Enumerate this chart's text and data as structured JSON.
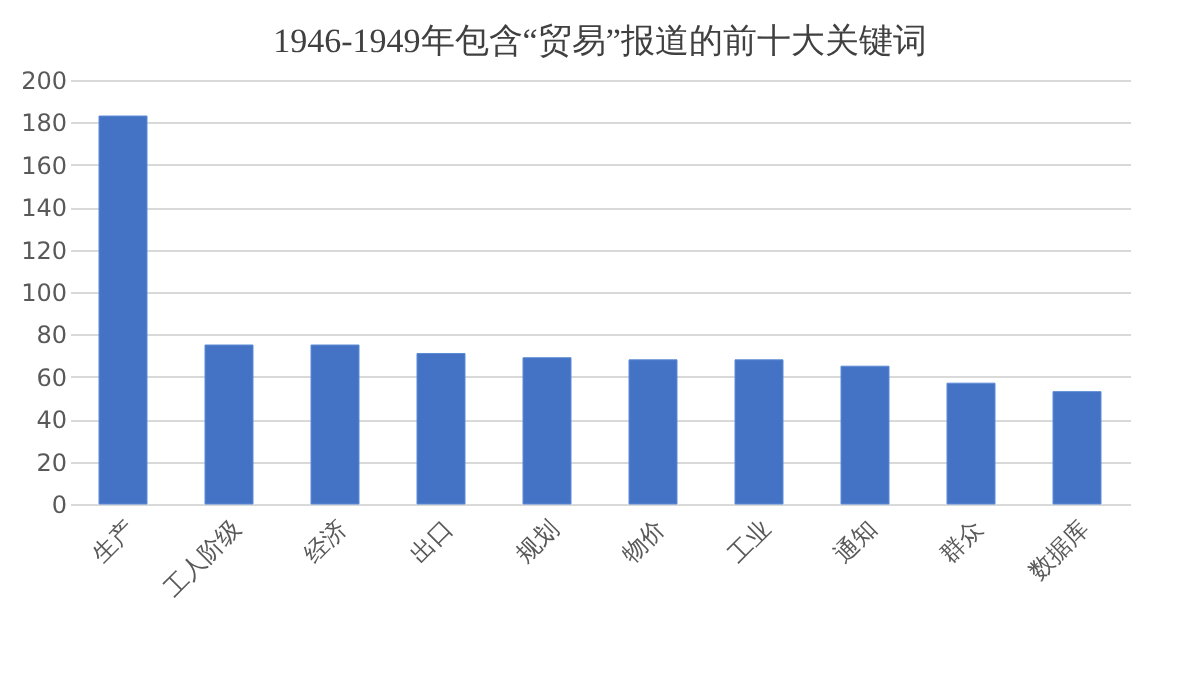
{
  "chart_data": {
    "type": "bar",
    "title": "1946-1949年包含“贸易”报道的前十大关键词",
    "categories": [
      "生产",
      "工人阶级",
      "经济",
      "出口",
      "规划",
      "物价",
      "工业",
      "通知",
      "群众",
      "数据库"
    ],
    "values": [
      183,
      75,
      75,
      71,
      69,
      68,
      68,
      65,
      57,
      53
    ],
    "color": "#4472c4",
    "ylim": [
      0,
      200
    ],
    "yticks": [
      0,
      20,
      40,
      60,
      80,
      100,
      120,
      140,
      160,
      180,
      200
    ],
    "grid": "y"
  }
}
